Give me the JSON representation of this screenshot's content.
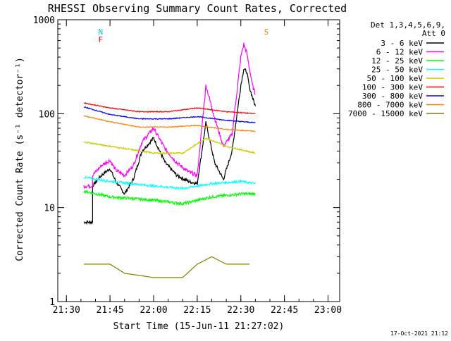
{
  "chart_data": {
    "type": "line",
    "title": "RHESSI Observing Summary Count Rates, Corrected",
    "xlabel": "Start Time (15-Jun-11 21:27:02)",
    "ylabel": "Corrected Count Rate (s⁻¹ detector⁻¹)",
    "y_scale": "log",
    "ylim": [
      1,
      1000
    ],
    "xlim": [
      "21:27:02",
      "23:04:00"
    ],
    "x_ticks": [
      "21:30",
      "21:45",
      "22:00",
      "22:15",
      "22:30",
      "22:45",
      "23:00"
    ],
    "y_ticks": [
      "1",
      "10",
      "100",
      "1000"
    ],
    "grid": false,
    "legend_position": "right",
    "legend_header": [
      "Det 1,3,4,5,6,9,",
      "Att 0"
    ],
    "series": [
      {
        "name": "3 - 6 keV",
        "color": "#000000",
        "x": [
          "21:36",
          "21:39",
          "21:39",
          "21:42",
          "21:45",
          "21:47",
          "21:50",
          "21:53",
          "21:56",
          "22:00",
          "22:04",
          "22:08",
          "22:12",
          "22:15",
          "22:18",
          "22:21",
          "22:24",
          "22:27",
          "22:30",
          "22:31",
          "22:32",
          "22:33",
          "22:34",
          "22:35"
        ],
        "values": [
          7,
          7,
          17,
          22,
          26,
          19,
          14,
          20,
          40,
          55,
          30,
          22,
          19,
          18,
          80,
          30,
          20,
          40,
          200,
          300,
          280,
          190,
          150,
          120
        ]
      },
      {
        "name": "6 - 12 keV",
        "color": "#ff00ff",
        "x": [
          "21:36",
          "21:39",
          "21:39",
          "21:42",
          "21:45",
          "21:47",
          "21:50",
          "21:53",
          "21:56",
          "22:00",
          "22:04",
          "22:08",
          "22:12",
          "22:15",
          "22:18",
          "22:21",
          "22:24",
          "22:27",
          "22:30",
          "22:31",
          "22:32",
          "22:33",
          "22:34",
          "22:35"
        ],
        "values": [
          17,
          17,
          22,
          28,
          32,
          25,
          22,
          28,
          50,
          70,
          42,
          30,
          24,
          22,
          200,
          90,
          45,
          60,
          400,
          550,
          450,
          300,
          200,
          160
        ]
      },
      {
        "name": "12 - 25 keV",
        "color": "#00ff00",
        "x": [
          "21:36",
          "21:45",
          "22:00",
          "22:10",
          "22:20",
          "22:30",
          "22:35"
        ],
        "values": [
          15,
          13,
          12,
          11,
          13,
          14,
          14
        ]
      },
      {
        "name": "25 - 50 keV",
        "color": "#00ffff",
        "x": [
          "21:36",
          "21:45",
          "22:00",
          "22:10",
          "22:20",
          "22:30",
          "22:35"
        ],
        "values": [
          21,
          19,
          17,
          16,
          18,
          19,
          18
        ]
      },
      {
        "name": "50 - 100 keV",
        "color": "#cccc00",
        "x": [
          "21:36",
          "21:45",
          "22:00",
          "22:10",
          "22:18",
          "22:25",
          "22:35"
        ],
        "values": [
          50,
          45,
          38,
          38,
          55,
          45,
          38
        ]
      },
      {
        "name": "100 - 300 keV",
        "color": "#ff0000",
        "x": [
          "21:36",
          "21:45",
          "21:55",
          "22:05",
          "22:15",
          "22:25",
          "22:35"
        ],
        "values": [
          130,
          115,
          105,
          105,
          115,
          105,
          100
        ]
      },
      {
        "name": "300 - 800 keV",
        "color": "#0000ff",
        "x": [
          "21:36",
          "21:45",
          "21:55",
          "22:05",
          "22:15",
          "22:25",
          "22:35"
        ],
        "values": [
          118,
          98,
          88,
          88,
          93,
          85,
          80
        ]
      },
      {
        "name": "800 - 7000 keV",
        "color": "#ff8000",
        "x": [
          "21:36",
          "21:45",
          "21:55",
          "22:05",
          "22:15",
          "22:25",
          "22:35"
        ],
        "values": [
          95,
          82,
          72,
          72,
          75,
          68,
          65
        ]
      },
      {
        "name": "7000 - 15000 keV",
        "color": "#808000",
        "x": [
          "21:36",
          "21:45",
          "21:50",
          "22:00",
          "22:10",
          "22:15",
          "22:20",
          "22:25",
          "22:33"
        ],
        "values": [
          2.5,
          2.5,
          2,
          1.8,
          1.8,
          2.5,
          3,
          2.5,
          2.5
        ]
      }
    ],
    "annotations": [
      {
        "label": "N",
        "color": "#00cccc",
        "x": "21:40"
      },
      {
        "label": "F",
        "color": "#ff0000",
        "x": "21:40"
      },
      {
        "label": "S",
        "color": "#ff8000",
        "x": "22:37"
      }
    ],
    "timestamp": "17-Oct-2021 21:12"
  }
}
